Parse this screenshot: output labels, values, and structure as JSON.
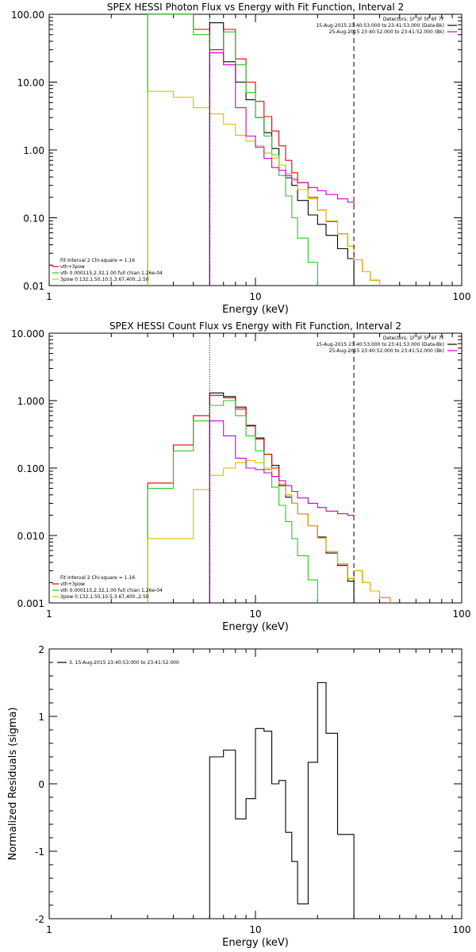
{
  "chart_data": [
    {
      "type": "line",
      "title": "SPEX HESSI Photon Flux vs Energy with Fit Function, Interval 2",
      "xlabel": "Energy (keV)",
      "ylabel": "",
      "x_scale": "log",
      "y_scale": "log",
      "xlim": [
        1,
        100
      ],
      "ylim": [
        0.01,
        100
      ],
      "x_ticks": [
        {
          "v": 1,
          "label": "1"
        },
        {
          "v": 10,
          "label": "10"
        },
        {
          "v": 100,
          "label": "100"
        }
      ],
      "y_ticks": [
        {
          "v": 0.01,
          "label": "0.01"
        },
        {
          "v": 0.1,
          "label": "0.10"
        },
        {
          "v": 1,
          "label": "1.00"
        },
        {
          "v": 10,
          "label": "10.00"
        },
        {
          "v": 100,
          "label": "100.00"
        }
      ],
      "header_lines": [
        "Detectors: 1F 3F 5F 6F 7F",
        "15-Aug-2015 23:40:53.000 to 23:41:53.000 (Data-Bk)",
        "25-Aug-2015 23:40:52.000 to 23:41:52.000 (Bk)"
      ],
      "header_colors": [
        "",
        "#000000",
        "#cc00cc"
      ],
      "fit_lines": [
        "Fit Interval 2   Chi-square = 1.16",
        "vth+3pow",
        "vth 0.000115,2.32,1.00  full chian 1.26e-04",
        "3pow 0.132,1.50,10.5,3.67,400.,2.50"
      ],
      "fit_colors": [
        "",
        "#dd0000",
        "#22cc22",
        "#ddbb00"
      ],
      "vlines": [
        {
          "x": 6,
          "style": "dotted"
        },
        {
          "x": 30,
          "style": "dashed"
        }
      ],
      "series": [
        {
          "name": "data",
          "color": "#000000",
          "edges": [
            6,
            7,
            8,
            9,
            10,
            11,
            12,
            13,
            14,
            15,
            16,
            18,
            20,
            22,
            25,
            28,
            30
          ],
          "values": [
            75,
            20,
            10,
            5.5,
            3,
            1.8,
            1.05,
            0.6,
            0.39,
            0.3,
            0.18,
            0.11,
            0.08,
            0.055,
            0.035,
            0.025
          ]
        },
        {
          "name": "vth+3pow",
          "color": "#dd0000",
          "edges": [
            3,
            4,
            5,
            6,
            7,
            8,
            9,
            10,
            11,
            12,
            13,
            14,
            15,
            16,
            18,
            20,
            22,
            25,
            28,
            30,
            33,
            36,
            40
          ],
          "values": [
            100,
            100,
            60,
            30,
            60,
            22,
            10,
            5.2,
            3.1,
            1.9,
            1.15,
            0.7,
            0.46,
            0.33,
            0.2,
            0.13,
            0.088,
            0.058,
            0.038,
            0.024,
            0.016,
            0.012
          ]
        },
        {
          "name": "vth",
          "color": "#22cc22",
          "edges": [
            3,
            4,
            5,
            6,
            7,
            8,
            9,
            10,
            11,
            12,
            13,
            14,
            15,
            16,
            18,
            20
          ],
          "values": [
            100,
            100,
            50,
            27,
            55,
            18,
            7,
            3,
            1.6,
            0.85,
            0.42,
            0.21,
            0.1,
            0.05,
            0.022
          ]
        },
        {
          "name": "3pow",
          "color": "#ddbb00",
          "edges": [
            3,
            4,
            5,
            6,
            7,
            8,
            9,
            10,
            11,
            12,
            13,
            14,
            15,
            16,
            18,
            20,
            22,
            25,
            28,
            30,
            33,
            36,
            40
          ],
          "values": [
            7.3,
            6,
            4.2,
            3.4,
            2.4,
            1.65,
            1.35,
            1.15,
            0.9,
            0.76,
            0.6,
            0.45,
            0.35,
            0.26,
            0.19,
            0.13,
            0.09,
            0.058,
            0.038,
            0.024,
            0.016,
            0.012
          ]
        },
        {
          "name": "background",
          "color": "#cc00cc",
          "edges": [
            6,
            7,
            8,
            9,
            10,
            11,
            12,
            13,
            14,
            15,
            16,
            18,
            20,
            22,
            25,
            28,
            30
          ],
          "values": [
            27,
            18,
            4.2,
            1.6,
            1.1,
            0.75,
            0.55,
            0.5,
            0.42,
            0.37,
            0.33,
            0.28,
            0.25,
            0.22,
            0.19,
            0.17,
            0.15
          ]
        }
      ]
    },
    {
      "type": "line",
      "title": "SPEX HESSI Count Flux vs Energy with Fit Function, Interval 2",
      "xlabel": "Energy (keV)",
      "ylabel": "",
      "x_scale": "log",
      "y_scale": "log",
      "xlim": [
        1,
        100
      ],
      "ylim": [
        0.001,
        10
      ],
      "x_ticks": [
        {
          "v": 1,
          "label": "1"
        },
        {
          "v": 10,
          "label": "10"
        },
        {
          "v": 100,
          "label": "100"
        }
      ],
      "y_ticks": [
        {
          "v": 0.001,
          "label": "0.001"
        },
        {
          "v": 0.01,
          "label": "0.010"
        },
        {
          "v": 0.1,
          "label": "0.100"
        },
        {
          "v": 1,
          "label": "1.000"
        },
        {
          "v": 10,
          "label": "10.000"
        }
      ],
      "header_lines": [
        "Detectors: 1F 3F 5F 6F 7F",
        "15-Aug-2015 23:40:53.000 to 23:41:53.000 (Data-Bk)",
        "25-Aug-2015 23:40:52.000 to 23:41:52.000 (Bk)"
      ],
      "header_colors": [
        "",
        "#000000",
        "#cc00cc"
      ],
      "fit_lines": [
        "Fit Interval 2   Chi-square = 1.16",
        "vth+3pow",
        "vth 0.000115,2.32,1.00  full chian 1.26e-04",
        "3pow 0.132,1.50,10.5,3.67,400.,2.50"
      ],
      "fit_colors": [
        "",
        "#dd0000",
        "#22cc22",
        "#ddbb00"
      ],
      "vlines": [
        {
          "x": 6,
          "style": "dotted"
        },
        {
          "x": 30,
          "style": "dashed"
        }
      ],
      "series": [
        {
          "name": "data",
          "color": "#000000",
          "edges": [
            6,
            7,
            8,
            9,
            10,
            11,
            12,
            13,
            14,
            15,
            16,
            18,
            20,
            22,
            25,
            28,
            30
          ],
          "values": [
            1.3,
            1.15,
            0.8,
            0.43,
            0.28,
            0.16,
            0.11,
            0.055,
            0.037,
            0.03,
            0.021,
            0.014,
            0.0095,
            0.0055,
            0.0036,
            0.0021
          ]
        },
        {
          "name": "vth+3pow",
          "color": "#dd0000",
          "edges": [
            3,
            4,
            5,
            6,
            7,
            8,
            9,
            10,
            11,
            12,
            13,
            14,
            15,
            16,
            18,
            20,
            22,
            25,
            28,
            30,
            33,
            36,
            40,
            45
          ],
          "values": [
            0.06,
            0.22,
            0.6,
            1.2,
            1.1,
            0.75,
            0.42,
            0.27,
            0.16,
            0.1,
            0.058,
            0.04,
            0.03,
            0.021,
            0.014,
            0.0092,
            0.0058,
            0.0038,
            0.0023,
            0.003,
            0.002,
            0.0015,
            0.0012
          ]
        },
        {
          "name": "vth",
          "color": "#22cc22",
          "edges": [
            3,
            4,
            5,
            6,
            7,
            8,
            9,
            10,
            11,
            12,
            13,
            14,
            15,
            16,
            18,
            20
          ],
          "values": [
            0.05,
            0.18,
            0.5,
            0.85,
            1.0,
            0.6,
            0.3,
            0.18,
            0.095,
            0.052,
            0.028,
            0.016,
            0.009,
            0.005,
            0.0022
          ]
        },
        {
          "name": "3pow",
          "color": "#ddbb00",
          "edges": [
            3,
            4,
            5,
            6,
            7,
            8,
            9,
            10,
            11,
            12,
            13,
            14,
            15,
            16,
            18,
            20,
            22,
            25,
            28,
            30,
            33,
            36,
            40,
            45
          ],
          "values": [
            0.009,
            0.009,
            0.048,
            0.078,
            0.1,
            0.12,
            0.13,
            0.12,
            0.1,
            0.075,
            0.058,
            0.04,
            0.03,
            0.021,
            0.014,
            0.0092,
            0.0058,
            0.0038,
            0.0023,
            0.003,
            0.002,
            0.0015,
            0.0012
          ]
        },
        {
          "name": "background",
          "color": "#cc00cc",
          "edges": [
            6,
            7,
            8,
            9,
            10,
            11,
            12,
            13,
            14,
            15,
            16,
            18,
            20,
            22,
            25,
            28,
            30
          ],
          "values": [
            0.5,
            0.3,
            0.14,
            0.1,
            0.095,
            0.085,
            0.075,
            0.065,
            0.055,
            0.045,
            0.036,
            0.03,
            0.026,
            0.023,
            0.021,
            0.02,
            0.019
          ]
        }
      ]
    },
    {
      "type": "line",
      "title": "",
      "xlabel": "Energy (keV)",
      "ylabel": "Normalized Residuals (sigma)",
      "x_scale": "log",
      "y_scale": "linear",
      "xlim": [
        1,
        100
      ],
      "ylim": [
        -2,
        2
      ],
      "x_ticks": [
        {
          "v": 1,
          "label": "1"
        },
        {
          "v": 10,
          "label": "10"
        },
        {
          "v": 100,
          "label": "100"
        }
      ],
      "y_ticks": [
        {
          "v": -2,
          "label": "-2"
        },
        {
          "v": -1,
          "label": "-1"
        },
        {
          "v": 0,
          "label": "0"
        },
        {
          "v": 1,
          "label": "1"
        },
        {
          "v": 2,
          "label": "2"
        }
      ],
      "legend": "3. 15-Aug-2015 23:40:53.000 to 23:41:52.000",
      "series": [
        {
          "name": "",
          "color": "#000000",
          "edges": [
            6,
            7,
            8,
            9,
            10,
            11,
            12,
            13,
            14,
            15,
            16,
            18,
            20,
            22,
            25,
            28,
            30
          ],
          "values": [
            0.4,
            0.5,
            -0.52,
            -0.22,
            0.82,
            0.78,
            0.0,
            0.05,
            -0.72,
            -1.15,
            -1.78,
            0.32,
            1.5,
            0.75,
            -0.75,
            -0.75
          ]
        }
      ]
    }
  ]
}
